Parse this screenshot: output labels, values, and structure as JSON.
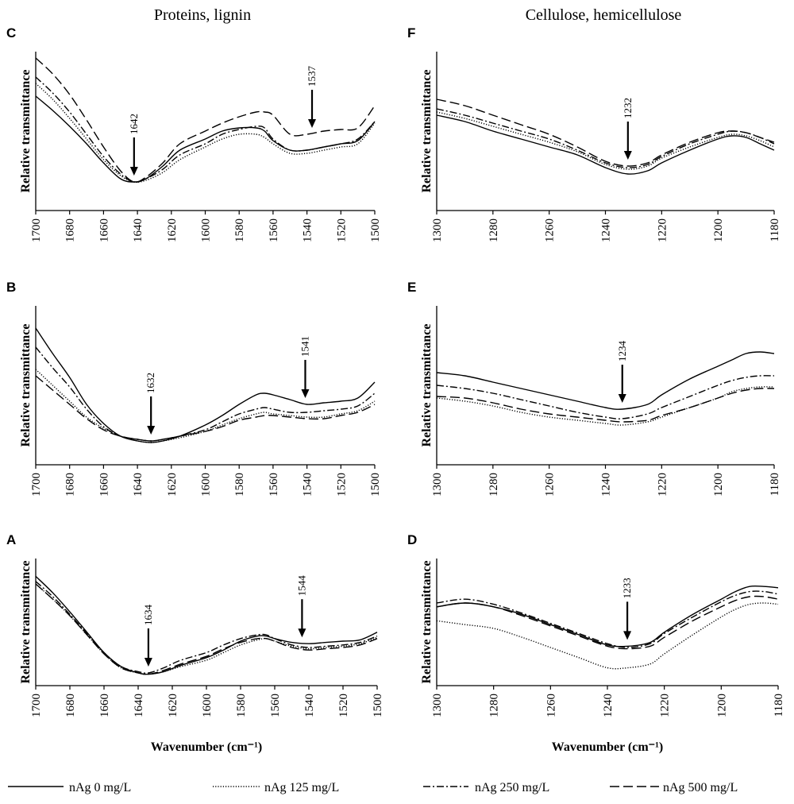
{
  "column_titles": [
    "Proteins, lignin",
    "Cellulose, hemicellulose"
  ],
  "legend": [
    {
      "label": "nAg 0 mg/L",
      "dash": "solid"
    },
    {
      "label": "nAg 125 mg/L",
      "dash": "dotted"
    },
    {
      "label": "nAg 250 mg/L",
      "dash": "dashdot"
    },
    {
      "label": "nAg 500 mg/L",
      "dash": "dashed"
    }
  ],
  "chart_data": [
    {
      "panel": "C",
      "type": "line",
      "title": "Proteins, lignin",
      "xlabel": "",
      "ylabel": "Relative transmittance",
      "xlim": [
        1700,
        1500
      ],
      "ylim": [
        0,
        100
      ],
      "xticks": [
        1700,
        1680,
        1660,
        1640,
        1620,
        1600,
        1580,
        1560,
        1540,
        1520,
        1500
      ],
      "annotations": [
        {
          "x": 1642,
          "label": "1642"
        },
        {
          "x": 1537,
          "label": "1537"
        }
      ],
      "x": [
        1700,
        1690,
        1680,
        1670,
        1660,
        1650,
        1642,
        1635,
        1625,
        1615,
        1600,
        1590,
        1580,
        1570,
        1565,
        1560,
        1550,
        1540,
        1530,
        1520,
        1510,
        1500
      ],
      "series": [
        {
          "name": "nAg 0 mg/L",
          "values": [
            72,
            63,
            53,
            42,
            30,
            20,
            18,
            20,
            28,
            38,
            45,
            50,
            52,
            52,
            50,
            44,
            38,
            38,
            40,
            42,
            44,
            56
          ]
        },
        {
          "name": "nAg 125 mg/L",
          "values": [
            80,
            70,
            58,
            45,
            32,
            22,
            18,
            19,
            24,
            32,
            40,
            45,
            48,
            48,
            46,
            42,
            36,
            36,
            38,
            40,
            42,
            55
          ]
        },
        {
          "name": "nAg 250 mg/L",
          "values": [
            84,
            74,
            62,
            48,
            34,
            23,
            18,
            20,
            26,
            35,
            42,
            48,
            51,
            53,
            52,
            45,
            38,
            38,
            40,
            42,
            45,
            56
          ]
        },
        {
          "name": "nAg 500 mg/L",
          "values": [
            96,
            86,
            73,
            57,
            40,
            25,
            18,
            21,
            30,
            42,
            50,
            55,
            59,
            62,
            62,
            60,
            48,
            48,
            50,
            51,
            52,
            66
          ]
        }
      ]
    },
    {
      "panel": "B",
      "type": "line",
      "title": "Proteins, lignin",
      "xlabel": "",
      "ylabel": "Relative transmittance",
      "xlim": [
        1700,
        1500
      ],
      "ylim": [
        0,
        100
      ],
      "xticks": [
        1700,
        1680,
        1660,
        1640,
        1620,
        1600,
        1580,
        1560,
        1540,
        1520,
        1500
      ],
      "annotations": [
        {
          "x": 1632,
          "label": "1632"
        },
        {
          "x": 1541,
          "label": "1541"
        }
      ],
      "x": [
        1700,
        1690,
        1680,
        1670,
        1660,
        1650,
        1640,
        1632,
        1625,
        1615,
        1600,
        1590,
        1580,
        1570,
        1565,
        1560,
        1550,
        1540,
        1530,
        1520,
        1510,
        1500
      ],
      "series": [
        {
          "name": "nAg 0 mg/L",
          "values": [
            86,
            70,
            55,
            38,
            26,
            18,
            15,
            14,
            15,
            18,
            25,
            31,
            38,
            44,
            45,
            44,
            41,
            38,
            39,
            40,
            42,
            52
          ]
        },
        {
          "name": "nAg 125 mg/L",
          "values": [
            60,
            50,
            40,
            30,
            23,
            18,
            15,
            14,
            15,
            17,
            21,
            25,
            29,
            32,
            33,
            32,
            31,
            30,
            30,
            32,
            34,
            40
          ]
        },
        {
          "name": "nAg 250 mg/L",
          "values": [
            74,
            61,
            49,
            35,
            24,
            18,
            16,
            15,
            16,
            18,
            22,
            27,
            32,
            35,
            36,
            35,
            33,
            33,
            34,
            35,
            37,
            45
          ]
        },
        {
          "name": "nAg 500 mg/L",
          "values": [
            56,
            47,
            38,
            29,
            22,
            18,
            16,
            15,
            16,
            18,
            21,
            24,
            28,
            30,
            31,
            31,
            30,
            29,
            29,
            31,
            33,
            38
          ]
        }
      ]
    },
    {
      "panel": "A",
      "type": "line",
      "title": "Proteins, lignin",
      "xlabel": "Wavenumber (cm⁻¹)",
      "ylabel": "Relative transmittance",
      "xlim": [
        1700,
        1500
      ],
      "ylim": [
        0,
        100
      ],
      "xticks": [
        1700,
        1680,
        1660,
        1640,
        1620,
        1600,
        1580,
        1560,
        1540,
        1520,
        1500
      ],
      "annotations": [
        {
          "x": 1634,
          "label": "1634"
        },
        {
          "x": 1544,
          "label": "1544"
        }
      ],
      "x": [
        1700,
        1690,
        1680,
        1670,
        1660,
        1650,
        1640,
        1634,
        1625,
        1615,
        1600,
        1590,
        1580,
        1570,
        1565,
        1560,
        1550,
        1540,
        1530,
        1520,
        1510,
        1500
      ],
      "series": [
        {
          "name": "nAg 0 mg/L",
          "values": [
            86,
            73,
            58,
            42,
            26,
            15,
            10,
            9,
            11,
            16,
            22,
            28,
            35,
            39,
            39,
            37,
            34,
            33,
            34,
            35,
            36,
            42
          ]
        },
        {
          "name": "nAg 125 mg/L",
          "values": [
            80,
            68,
            55,
            40,
            25,
            14,
            10,
            9,
            11,
            15,
            20,
            26,
            32,
            36,
            37,
            35,
            31,
            29,
            30,
            31,
            33,
            38
          ]
        },
        {
          "name": "nAg 250 mg/L",
          "values": [
            82,
            70,
            56,
            41,
            26,
            15,
            11,
            10,
            14,
            20,
            26,
            32,
            37,
            40,
            40,
            37,
            32,
            30,
            31,
            32,
            34,
            39
          ]
        },
        {
          "name": "nAg 500 mg/L",
          "values": [
            80,
            68,
            55,
            40,
            25,
            14,
            10,
            9,
            12,
            17,
            23,
            29,
            34,
            37,
            37,
            35,
            30,
            28,
            29,
            30,
            32,
            37
          ]
        }
      ]
    },
    {
      "panel": "F",
      "type": "line",
      "title": "Cellulose, hemicellulose",
      "xlabel": "",
      "ylabel": "Relative transmittance",
      "xlim": [
        1300,
        1180
      ],
      "ylim": [
        0,
        100
      ],
      "xticks": [
        1300,
        1280,
        1260,
        1240,
        1220,
        1200,
        1180
      ],
      "annotations": [
        {
          "x": 1232,
          "label": "1232"
        }
      ],
      "x": [
        1300,
        1290,
        1280,
        1270,
        1260,
        1250,
        1240,
        1232,
        1225,
        1220,
        1210,
        1200,
        1195,
        1190,
        1185,
        1180
      ],
      "series": [
        {
          "name": "nAg 0 mg/L",
          "values": [
            60,
            56,
            50,
            45,
            40,
            35,
            27,
            23,
            25,
            30,
            38,
            45,
            47,
            46,
            42,
            38
          ]
        },
        {
          "name": "nAg 125 mg/L",
          "values": [
            62,
            58,
            53,
            48,
            43,
            37,
            29,
            26,
            28,
            33,
            40,
            46,
            48,
            47,
            44,
            40
          ]
        },
        {
          "name": "nAg 250 mg/L",
          "values": [
            64,
            60,
            55,
            50,
            45,
            38,
            30,
            27,
            29,
            34,
            42,
            48,
            50,
            49,
            46,
            42
          ]
        },
        {
          "name": "nAg 500 mg/L",
          "values": [
            70,
            66,
            60,
            54,
            48,
            40,
            31,
            28,
            30,
            35,
            43,
            49,
            50,
            49,
            46,
            43
          ]
        }
      ]
    },
    {
      "panel": "E",
      "type": "line",
      "title": "Cellulose, hemicellulose",
      "xlabel": "",
      "ylabel": "Relative transmittance",
      "xlim": [
        1300,
        1180
      ],
      "ylim": [
        0,
        100
      ],
      "xticks": [
        1300,
        1280,
        1260,
        1240,
        1220,
        1200,
        1180
      ],
      "annotations": [
        {
          "x": 1234,
          "label": "1234"
        }
      ],
      "x": [
        1300,
        1290,
        1280,
        1270,
        1260,
        1250,
        1240,
        1234,
        1225,
        1220,
        1210,
        1200,
        1195,
        1190,
        1185,
        1180
      ],
      "series": [
        {
          "name": "nAg 0 mg/L",
          "values": [
            58,
            56,
            52,
            48,
            44,
            40,
            36,
            35,
            38,
            44,
            54,
            62,
            66,
            70,
            71,
            70
          ]
        },
        {
          "name": "nAg 125 mg/L",
          "values": [
            42,
            40,
            37,
            33,
            30,
            28,
            26,
            25,
            27,
            30,
            36,
            42,
            46,
            48,
            49,
            49
          ]
        },
        {
          "name": "nAg 250 mg/L",
          "values": [
            50,
            48,
            45,
            41,
            37,
            33,
            30,
            29,
            32,
            36,
            43,
            50,
            53,
            55,
            56,
            56
          ]
        },
        {
          "name": "nAg 500 mg/L",
          "values": [
            43,
            42,
            39,
            35,
            32,
            30,
            28,
            27,
            28,
            31,
            36,
            42,
            45,
            47,
            48,
            48
          ]
        }
      ]
    },
    {
      "panel": "D",
      "type": "line",
      "title": "Cellulose, hemicellulose",
      "xlabel": "Wavenumber (cm⁻¹)",
      "ylabel": "Relative transmittance",
      "xlim": [
        1300,
        1180
      ],
      "ylim": [
        0,
        100
      ],
      "xticks": [
        1300,
        1280,
        1260,
        1240,
        1220,
        1200,
        1180
      ],
      "annotations": [
        {
          "x": 1233,
          "label": "1233"
        }
      ],
      "x": [
        1300,
        1290,
        1280,
        1270,
        1260,
        1250,
        1240,
        1233,
        1225,
        1220,
        1210,
        1200,
        1195,
        1190,
        1185,
        1180
      ],
      "series": [
        {
          "name": "nAg 0 mg/L",
          "values": [
            62,
            65,
            62,
            56,
            48,
            40,
            32,
            31,
            34,
            42,
            56,
            68,
            74,
            78,
            78,
            77
          ]
        },
        {
          "name": "nAg 125 mg/L",
          "values": [
            51,
            48,
            45,
            38,
            30,
            22,
            14,
            14,
            17,
            25,
            40,
            54,
            60,
            64,
            65,
            64
          ]
        },
        {
          "name": "nAg 250 mg/L",
          "values": [
            65,
            68,
            64,
            57,
            49,
            41,
            33,
            30,
            33,
            41,
            54,
            66,
            71,
            74,
            74,
            72
          ]
        },
        {
          "name": "nAg 500 mg/L",
          "values": [
            62,
            65,
            62,
            55,
            47,
            39,
            31,
            29,
            31,
            38,
            51,
            62,
            67,
            70,
            70,
            68
          ]
        }
      ]
    }
  ]
}
